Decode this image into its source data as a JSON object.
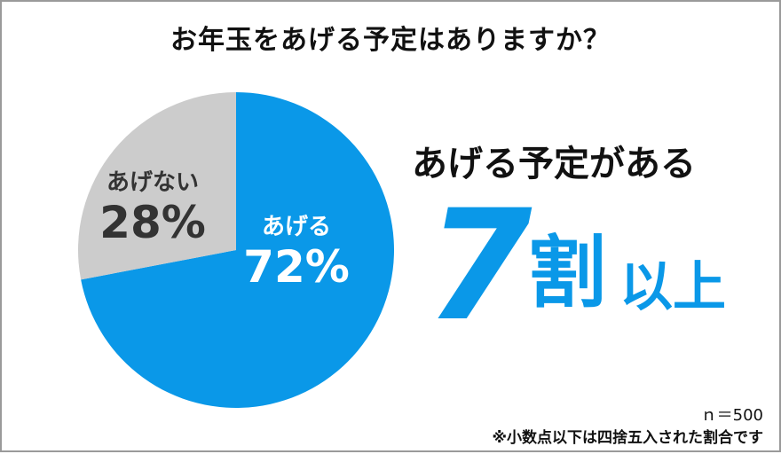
{
  "title": "お年玉をあげる予定はありますか？",
  "chart_data": {
    "type": "pie",
    "categories": [
      "あげる",
      "あげない"
    ],
    "values": [
      72,
      28
    ],
    "value_labels": [
      "72%",
      "28%"
    ],
    "colors": [
      "#0a98e8",
      "#cccccc"
    ],
    "label_colors": [
      "#ffffff",
      "#333333"
    ]
  },
  "headline": "あげる予定がある",
  "big_number": "7",
  "big_unit": "割",
  "big_suffix": "以上",
  "sample_size": "ｎ＝500",
  "footnote": "※小数点以下は四捨五入された割合です"
}
